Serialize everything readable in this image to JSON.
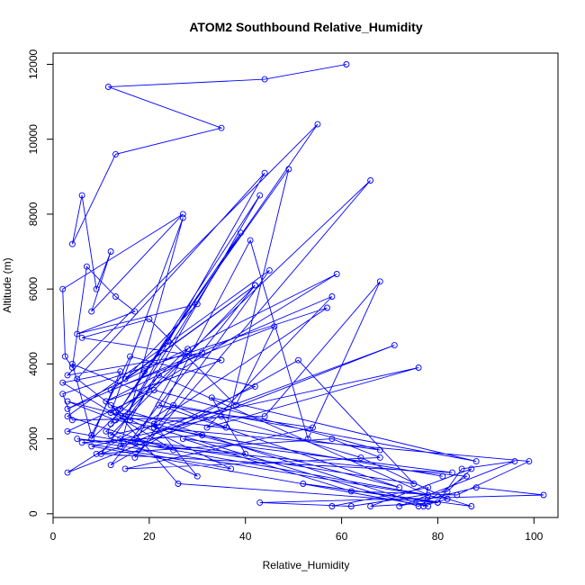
{
  "chart_data": {
    "type": "line",
    "title": "ATOM2 Southbound Relative_Humidity",
    "xlabel": "Relative_Humidity",
    "ylabel": "Altitude (m)",
    "xlim": [
      0,
      105
    ],
    "ylim": [
      -100,
      12300
    ],
    "xticks": [
      0,
      20,
      40,
      60,
      80,
      100
    ],
    "yticks": [
      0,
      2000,
      4000,
      6000,
      8000,
      10000,
      12000
    ],
    "grid": false,
    "legend": "none",
    "series_color": "#0000ff",
    "markers": "open-circle",
    "x": [
      61,
      44,
      11.5,
      35,
      13,
      4,
      6,
      9,
      12,
      8,
      27,
      2,
      2.5,
      4,
      7,
      13,
      17,
      5,
      30,
      15,
      42,
      12,
      46,
      38,
      20,
      6,
      35,
      11,
      31,
      3,
      55,
      14,
      39,
      15,
      24,
      44,
      5,
      16,
      43,
      12,
      19,
      49,
      36,
      4,
      8,
      16,
      42,
      17,
      28,
      8,
      14,
      2,
      25,
      3,
      45,
      17,
      66,
      11,
      30,
      21,
      41,
      53,
      68,
      44,
      4,
      2,
      57,
      14,
      27,
      12,
      59,
      3,
      58,
      32,
      76,
      12,
      42,
      12,
      51,
      75,
      14,
      40,
      33,
      88,
      25,
      3,
      71,
      10,
      22,
      78,
      3,
      21,
      68,
      13,
      37,
      6,
      31,
      81,
      13,
      3,
      72,
      22,
      54,
      15,
      68,
      58,
      9,
      83,
      27,
      62,
      84,
      99,
      21,
      76,
      86,
      5,
      82,
      64,
      35,
      8,
      78,
      12,
      26,
      80,
      85,
      96,
      72,
      88,
      102,
      43,
      62,
      82,
      87,
      66,
      80,
      52,
      87,
      82,
      77,
      78,
      58
    ],
    "y": [
      12000,
      11600,
      11400,
      10300,
      9600,
      7200,
      8500,
      6000,
      7000,
      5400,
      8000,
      6000,
      4200,
      3900,
      6600,
      5800,
      5400,
      4800,
      5600,
      3600,
      6100,
      3300,
      5000,
      2900,
      5200,
      4700,
      4100,
      3000,
      4300,
      3700,
      10400,
      2800,
      7500,
      2600,
      4600,
      9100,
      3600,
      2500,
      8500,
      2400,
      3800,
      9200,
      2300,
      4000,
      2100,
      4200,
      3400,
      1900,
      4400,
      2000,
      3800,
      3500,
      1700,
      2600,
      6500,
      1500,
      8900,
      2200,
      1000,
      2400,
      7300,
      2000,
      6200,
      2600,
      2500,
      3200,
      5500,
      1800,
      7900,
      2700,
      6400,
      2800,
      5800,
      2300,
      3900,
      2100,
      6100,
      1300,
      4100,
      800,
      2000,
      1600,
      3100,
      1400,
      2900,
      1100,
      4500,
      1600,
      3700,
      500,
      2200,
      3300,
      1700,
      2700,
      1200,
      1900,
      2100,
      1000,
      2500,
      3000,
      700,
      2900,
      2300,
      1200,
      1500,
      2000,
      1600,
      1100,
      2000,
      600,
      500,
      1400,
      2300,
      200,
      1000,
      2000,
      400,
      1500,
      2600,
      1800,
      200,
      2900,
      800,
      300,
      1200,
      1400,
      200,
      700,
      500,
      300,
      200,
      600,
      1200,
      200,
      300,
      800,
      200,
      400,
      200,
      700,
      200
    ]
  }
}
